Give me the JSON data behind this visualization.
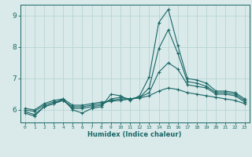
{
  "xlabel": "Humidex (Indice chaleur)",
  "bg_color": "#daeaea",
  "grid_color": "#b8d4d4",
  "line_color": "#1a6666",
  "xlim": [
    -0.5,
    23.5
  ],
  "ylim": [
    5.6,
    9.35
  ],
  "xticks": [
    0,
    1,
    2,
    3,
    4,
    5,
    6,
    7,
    8,
    9,
    10,
    11,
    12,
    13,
    14,
    15,
    16,
    17,
    18,
    19,
    20,
    21,
    22,
    23
  ],
  "yticks": [
    6,
    7,
    8,
    9
  ],
  "series": [
    [
      5.9,
      5.8,
      6.1,
      6.2,
      6.35,
      6.0,
      5.9,
      6.05,
      6.1,
      6.5,
      6.45,
      6.3,
      6.45,
      7.05,
      8.78,
      9.2,
      8.05,
      7.0,
      6.95,
      6.85,
      6.6,
      6.6,
      6.55,
      6.35
    ],
    [
      5.95,
      5.85,
      6.1,
      6.2,
      6.3,
      6.05,
      6.05,
      6.1,
      6.15,
      6.35,
      6.4,
      6.35,
      6.4,
      6.7,
      7.95,
      8.55,
      7.8,
      6.9,
      6.85,
      6.75,
      6.55,
      6.55,
      6.5,
      6.3
    ],
    [
      6.0,
      5.95,
      6.15,
      6.25,
      6.3,
      6.1,
      6.1,
      6.15,
      6.2,
      6.3,
      6.35,
      6.35,
      6.4,
      6.55,
      7.2,
      7.5,
      7.3,
      6.8,
      6.75,
      6.7,
      6.5,
      6.5,
      6.45,
      6.25
    ],
    [
      6.05,
      6.0,
      6.2,
      6.3,
      6.35,
      6.15,
      6.15,
      6.2,
      6.25,
      6.28,
      6.3,
      6.35,
      6.38,
      6.45,
      6.6,
      6.7,
      6.65,
      6.55,
      6.5,
      6.45,
      6.4,
      6.35,
      6.3,
      6.2
    ]
  ]
}
